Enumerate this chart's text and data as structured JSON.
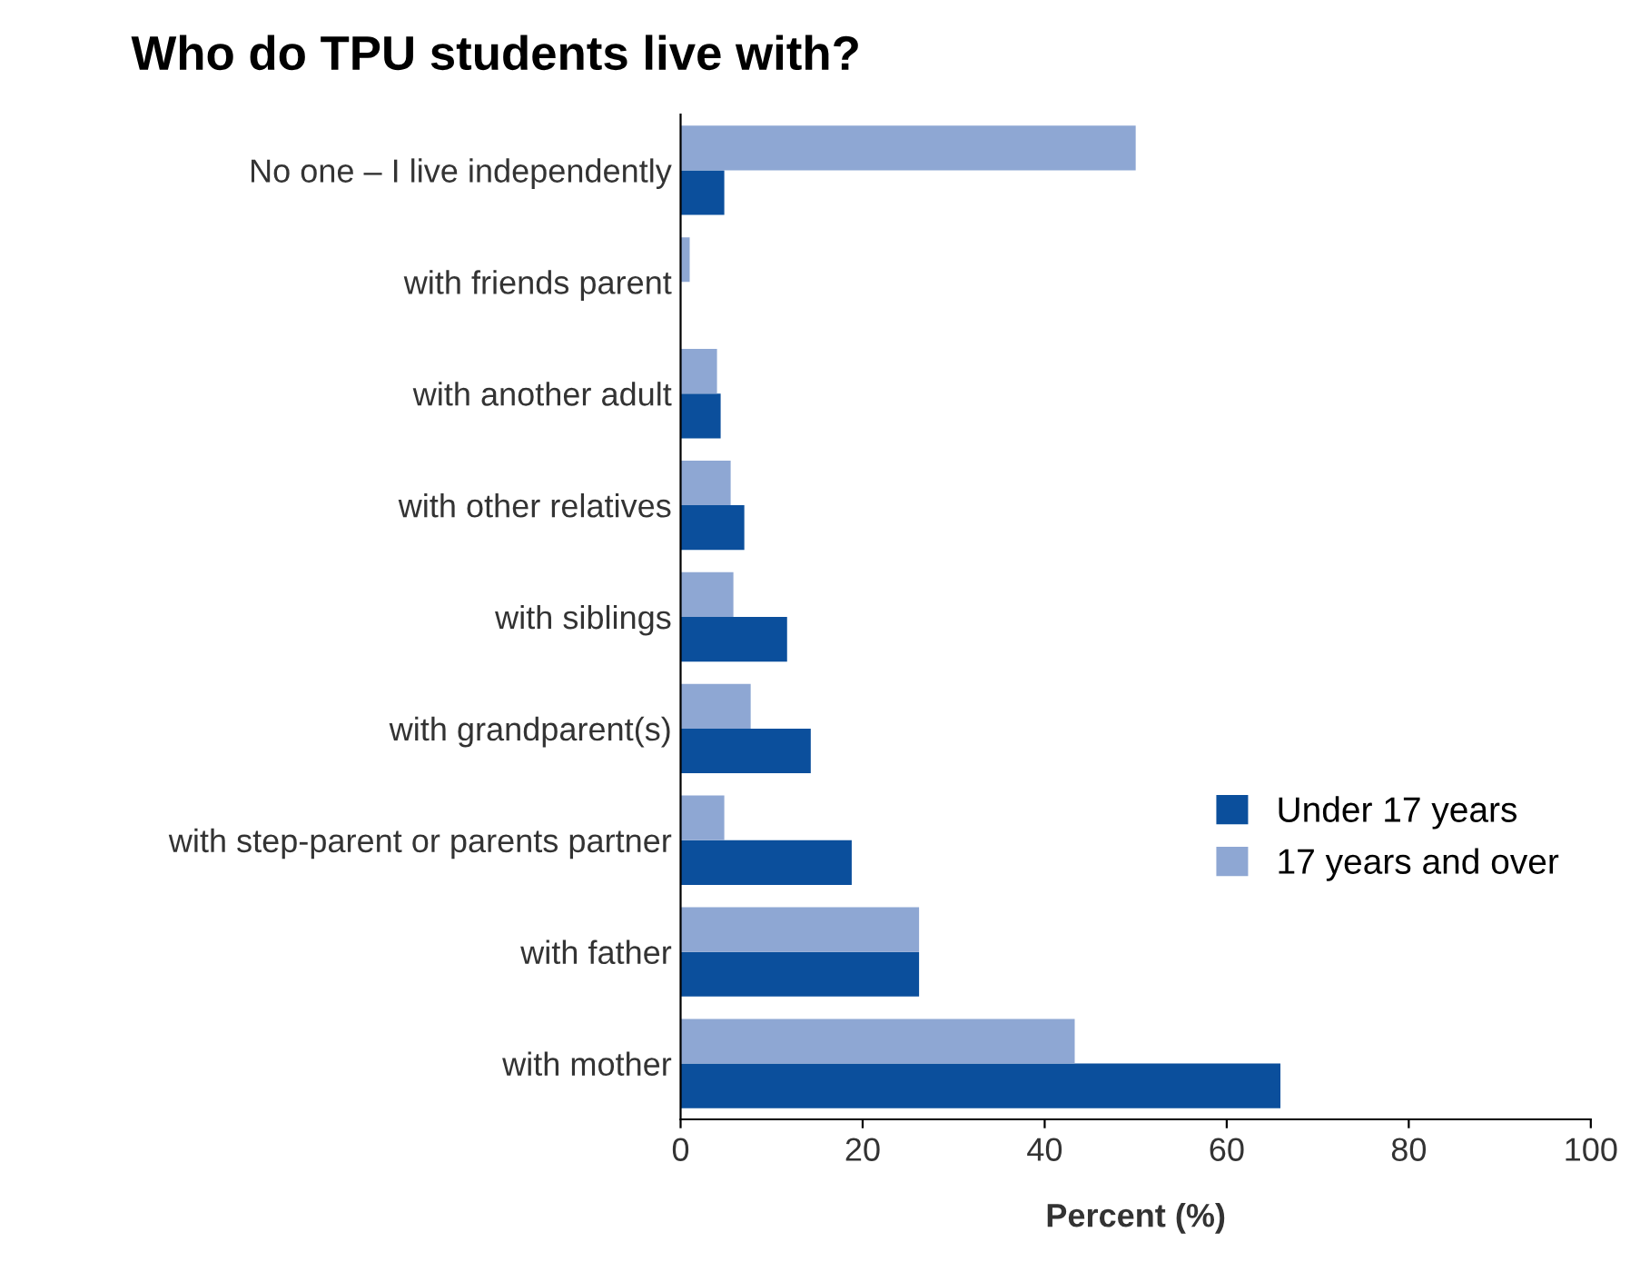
{
  "chart_data": {
    "type": "bar",
    "orientation": "horizontal",
    "title": "Who do TPU students live with?",
    "xlabel": "Percent (%)",
    "categories": [
      "No one – I live independently",
      "with friends parent",
      "with another adult",
      "with other relatives",
      "with siblings",
      "with grandparent(s)",
      "with step-parent or parents partner",
      "with father",
      "with mother"
    ],
    "series": [
      {
        "name": "Under 17 years",
        "color": "#0b4f9c",
        "values": [
          4.8,
          0,
          4.4,
          7,
          11.7,
          14.3,
          18.8,
          26.2,
          65.9
        ]
      },
      {
        "name": "17 years and over",
        "color": "#8ea7d3",
        "values": [
          50,
          1,
          4,
          5.5,
          5.8,
          7.7,
          4.8,
          26.2,
          43.3
        ]
      }
    ],
    "xlim": [
      0,
      100
    ],
    "xticks": [
      0,
      20,
      40,
      60,
      80,
      100
    ],
    "grid": false,
    "legend": "right"
  }
}
